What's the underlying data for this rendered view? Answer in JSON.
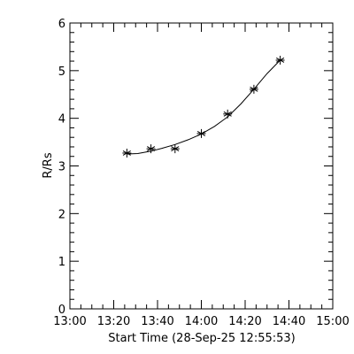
{
  "chart_data": {
    "type": "scatter",
    "xlabel": "Start Time (28-Sep-25 12:55:53)",
    "ylabel": "R/Rs",
    "xlim": [
      "13:00",
      "15:00"
    ],
    "ylim": [
      0,
      6
    ],
    "x_ticks": [
      "13:00",
      "13:20",
      "13:40",
      "14:00",
      "14:20",
      "14:40",
      "15:00"
    ],
    "y_ticks": [
      0,
      1,
      2,
      3,
      4,
      5,
      6
    ],
    "grid": false,
    "series": [
      {
        "marker": "asterisk",
        "x": [
          "13:26",
          "13:37",
          "13:48",
          "14:00",
          "14:12",
          "14:24",
          "14:36"
        ],
        "y": [
          3.27,
          3.36,
          3.36,
          3.68,
          4.09,
          4.61,
          5.22
        ]
      }
    ],
    "fit": {
      "type": "curve",
      "x": [
        "13:26",
        "13:31",
        "13:37",
        "13:42",
        "13:48",
        "13:54",
        "14:00",
        "14:06",
        "14:12",
        "14:18",
        "14:24",
        "14:30",
        "14:36"
      ],
      "y": [
        3.25,
        3.26,
        3.31,
        3.37,
        3.45,
        3.55,
        3.67,
        3.83,
        4.03,
        4.3,
        4.61,
        4.94,
        5.22
      ]
    }
  }
}
